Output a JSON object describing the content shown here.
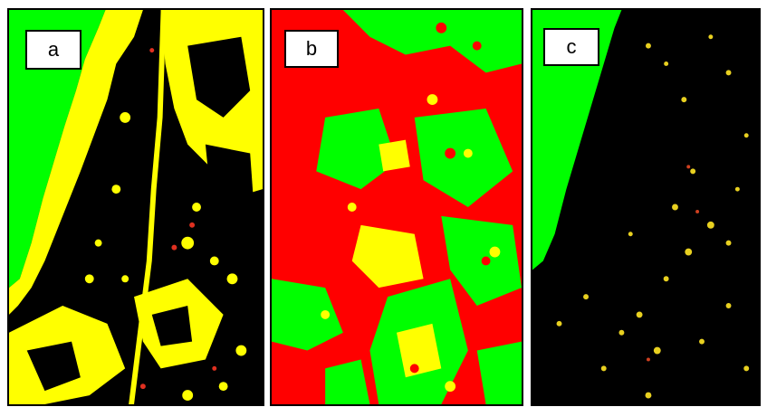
{
  "panels": [
    {
      "id": "a",
      "label": "a",
      "background": "#000000"
    },
    {
      "id": "b",
      "label": "b",
      "background": "#ff0000"
    },
    {
      "id": "c",
      "label": "c",
      "background": "#000000"
    }
  ],
  "colors": {
    "green": "#00ff00",
    "red": "#ff0000",
    "yellow": "#ffff00",
    "black": "#000000",
    "orange": "#e8a020"
  }
}
